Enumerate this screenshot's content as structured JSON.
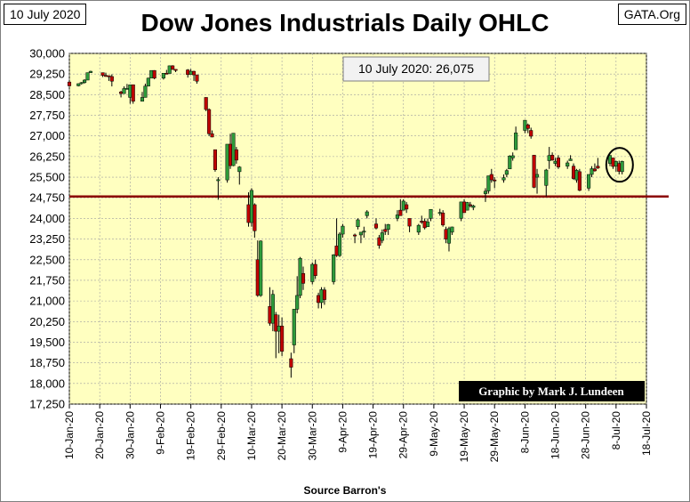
{
  "header": {
    "date": "10 July 2020",
    "title": "Dow Jones Industrials Daily OHLC",
    "source": "GATA.Org"
  },
  "footer": {
    "source": "Source Barron's"
  },
  "colors": {
    "plot_bg": "#ffffc0",
    "up": "#2e9b3a",
    "down": "#c00000",
    "wick": "#000000",
    "ref_line": "#8b0000"
  },
  "chart_data": {
    "type": "candlestick",
    "title": "Dow Jones Industrials Daily OHLC",
    "xlabel": "",
    "ylabel": "",
    "ylim": [
      17250,
      30000
    ],
    "xlim": [
      "2020-01-10",
      "2020-07-18"
    ],
    "y_ticks": [
      "30,000",
      "29,250",
      "28,500",
      "27,750",
      "27,000",
      "26,250",
      "25,500",
      "24,750",
      "24,000",
      "23,250",
      "22,500",
      "21,750",
      "21,000",
      "20,250",
      "19,500",
      "18,750",
      "18,000",
      "17,250"
    ],
    "y_tick_values": [
      30000,
      29250,
      28500,
      27750,
      27000,
      26250,
      25500,
      24750,
      24000,
      23250,
      22500,
      21750,
      21000,
      20250,
      19500,
      18750,
      18000,
      17250
    ],
    "x_tick_labels": [
      "10-Jan-20",
      "20-Jan-20",
      "30-Jan-20",
      "9-Feb-20",
      "19-Feb-20",
      "29-Feb-20",
      "10-Mar-20",
      "20-Mar-20",
      "30-Mar-20",
      "9-Apr-20",
      "19-Apr-20",
      "29-Apr-20",
      "9-May-20",
      "19-May-20",
      "29-May-20",
      "8-Jun-20",
      "18-Jun-20",
      "28-Jun-20",
      "8-Jul-20",
      "18-Jul-20"
    ],
    "x_tick_dates": [
      "2020-01-10",
      "2020-01-20",
      "2020-01-30",
      "2020-02-09",
      "2020-02-19",
      "2020-02-29",
      "2020-03-10",
      "2020-03-20",
      "2020-03-30",
      "2020-04-09",
      "2020-04-19",
      "2020-04-29",
      "2020-05-09",
      "2020-05-19",
      "2020-05-29",
      "2020-06-08",
      "2020-06-18",
      "2020-06-28",
      "2020-07-08",
      "2020-07-18"
    ],
    "grid": true,
    "reference_line": 24800,
    "annotation": "10 July 2020: 26,075",
    "credit": "Graphic by Mark J. Lundeen",
    "highlight": {
      "date": "2020-07-08",
      "value": 25950
    },
    "ohlc": [
      [
        "2020-01-10",
        28960,
        28970,
        28800,
        28820
      ],
      [
        "2020-01-13",
        28820,
        28910,
        28800,
        28900
      ],
      [
        "2020-01-14",
        28900,
        28960,
        28870,
        28940
      ],
      [
        "2020-01-15",
        28940,
        29060,
        28900,
        29030
      ],
      [
        "2020-01-16",
        29030,
        29300,
        29030,
        29300
      ],
      [
        "2020-01-17",
        29300,
        29370,
        29290,
        29350
      ],
      [
        "2020-01-21",
        29300,
        29300,
        29140,
        29200
      ],
      [
        "2020-01-22",
        29200,
        29300,
        29150,
        29190
      ],
      [
        "2020-01-23",
        29190,
        29200,
        29000,
        29160
      ],
      [
        "2020-01-24",
        29160,
        29240,
        28800,
        28990
      ],
      [
        "2020-01-27",
        28600,
        28640,
        28400,
        28540
      ],
      [
        "2020-01-28",
        28540,
        28800,
        28530,
        28720
      ],
      [
        "2020-01-29",
        28720,
        28890,
        28700,
        28730
      ],
      [
        "2020-01-30",
        28400,
        28860,
        28170,
        28860
      ],
      [
        "2020-01-31",
        28860,
        28870,
        28170,
        28260
      ],
      [
        "2020-02-03",
        28260,
        28600,
        28260,
        28400
      ],
      [
        "2020-02-04",
        28400,
        28900,
        28400,
        28810
      ],
      [
        "2020-02-05",
        28810,
        29120,
        28800,
        29100
      ],
      [
        "2020-02-06",
        29100,
        29380,
        29100,
        29380
      ],
      [
        "2020-02-07",
        29380,
        29390,
        29060,
        29100
      ],
      [
        "2020-02-10",
        29100,
        29280,
        29050,
        29280
      ],
      [
        "2020-02-11",
        29280,
        29400,
        29270,
        29270
      ],
      [
        "2020-02-12",
        29270,
        29560,
        29270,
        29550
      ],
      [
        "2020-02-13",
        29550,
        29570,
        29400,
        29420
      ],
      [
        "2020-02-14",
        29420,
        29420,
        29320,
        29400
      ],
      [
        "2020-02-18",
        29400,
        29430,
        29120,
        29230
      ],
      [
        "2020-02-19",
        29230,
        29430,
        29230,
        29350
      ],
      [
        "2020-02-20",
        29350,
        29370,
        29000,
        29220
      ],
      [
        "2020-02-21",
        29220,
        29220,
        28900,
        28990
      ],
      [
        "2020-02-24",
        28400,
        28400,
        27900,
        27960
      ],
      [
        "2020-02-25",
        27960,
        28000,
        27000,
        27080
      ],
      [
        "2020-02-26",
        27080,
        27200,
        26950,
        26960
      ],
      [
        "2020-02-27",
        26500,
        26500,
        25700,
        25770
      ],
      [
        "2020-02-28",
        25400,
        25500,
        24680,
        25410
      ],
      [
        "2020-03-02",
        25400,
        26700,
        25300,
        26700
      ],
      [
        "2020-03-03",
        26700,
        27080,
        25800,
        25920
      ],
      [
        "2020-03-04",
        25920,
        27100,
        25900,
        27100
      ],
      [
        "2020-03-05",
        26500,
        26600,
        25990,
        26120
      ],
      [
        "2020-03-06",
        25700,
        25900,
        25230,
        25870
      ],
      [
        "2020-03-09",
        24500,
        24950,
        23700,
        23850
      ],
      [
        "2020-03-10",
        23850,
        25100,
        23700,
        25020
      ],
      [
        "2020-03-11",
        24500,
        24550,
        23300,
        23550
      ],
      [
        "2020-03-12",
        22500,
        23200,
        21150,
        21200
      ],
      [
        "2020-03-13",
        21200,
        23200,
        21150,
        23180
      ],
      [
        "2020-03-16",
        20800,
        21500,
        20100,
        20190
      ],
      [
        "2020-03-17",
        20190,
        21400,
        19900,
        21240
      ],
      [
        "2020-03-18",
        20500,
        20600,
        18920,
        19900
      ],
      [
        "2020-03-19",
        19900,
        20500,
        19100,
        20090
      ],
      [
        "2020-03-20",
        20090,
        20400,
        19000,
        19170
      ],
      [
        "2020-03-23",
        18900,
        19120,
        18210,
        18590
      ],
      [
        "2020-03-24",
        19400,
        20700,
        19100,
        20700
      ],
      [
        "2020-03-25",
        20700,
        21900,
        20550,
        21200
      ],
      [
        "2020-03-26",
        21200,
        22600,
        21100,
        22550
      ],
      [
        "2020-03-27",
        22000,
        22250,
        21400,
        21640
      ],
      [
        "2020-03-30",
        21700,
        22400,
        21600,
        22330
      ],
      [
        "2020-03-31",
        22330,
        22500,
        21800,
        21920
      ],
      [
        "2020-04-01",
        21200,
        21300,
        20730,
        20940
      ],
      [
        "2020-04-02",
        20940,
        21500,
        20730,
        21410
      ],
      [
        "2020-04-03",
        21400,
        21500,
        20860,
        21050
      ],
      [
        "2020-04-06",
        21700,
        22700,
        21600,
        22680
      ],
      [
        "2020-04-07",
        23000,
        24000,
        22600,
        22650
      ],
      [
        "2020-04-08",
        22650,
        23500,
        22600,
        23430
      ],
      [
        "2020-04-09",
        23430,
        23800,
        23300,
        23720
      ],
      [
        "2020-04-13",
        23400,
        23450,
        23100,
        23390
      ],
      [
        "2020-04-14",
        23700,
        24000,
        23600,
        23950
      ],
      [
        "2020-04-15",
        23400,
        23500,
        23100,
        23500
      ],
      [
        "2020-04-16",
        23500,
        23700,
        23300,
        23540
      ],
      [
        "2020-04-17",
        24100,
        24300,
        24000,
        24240
      ],
      [
        "2020-04-20",
        23800,
        24000,
        23600,
        23650
      ],
      [
        "2020-04-21",
        23300,
        23400,
        22900,
        23020
      ],
      [
        "2020-04-22",
        23200,
        23600,
        23100,
        23480
      ],
      [
        "2020-04-23",
        23600,
        23800,
        23400,
        23520
      ],
      [
        "2020-04-24",
        23600,
        23800,
        23400,
        23780
      ],
      [
        "2020-04-27",
        24000,
        24300,
        23900,
        24130
      ],
      [
        "2020-04-28",
        24300,
        24700,
        24100,
        24100
      ],
      [
        "2020-04-29",
        24300,
        24700,
        24300,
        24630
      ],
      [
        "2020-04-30",
        24500,
        24600,
        24200,
        24340
      ],
      [
        "2020-05-01",
        24000,
        24000,
        23500,
        23720
      ],
      [
        "2020-05-04",
        23500,
        23800,
        23400,
        23750
      ],
      [
        "2020-05-05",
        23900,
        24100,
        23800,
        23880
      ],
      [
        "2020-05-06",
        23900,
        24000,
        23600,
        23660
      ],
      [
        "2020-05-07",
        23700,
        24000,
        23700,
        23870
      ],
      [
        "2020-05-08",
        24000,
        24300,
        23900,
        24330
      ],
      [
        "2020-05-11",
        24200,
        24350,
        24100,
        24220
      ],
      [
        "2020-05-12",
        24200,
        24300,
        23700,
        23760
      ],
      [
        "2020-05-13",
        23600,
        23700,
        23100,
        23250
      ],
      [
        "2020-05-14",
        23100,
        23700,
        22800,
        23630
      ],
      [
        "2020-05-15",
        23500,
        23700,
        23400,
        23690
      ],
      [
        "2020-05-18",
        24000,
        24600,
        23900,
        24600
      ],
      [
        "2020-05-19",
        24600,
        24700,
        24200,
        24210
      ],
      [
        "2020-05-20",
        24300,
        24600,
        24300,
        24580
      ],
      [
        "2020-05-21",
        24500,
        24600,
        24400,
        24470
      ],
      [
        "2020-05-22",
        24400,
        24500,
        24300,
        24460
      ],
      [
        "2020-05-26",
        24900,
        25100,
        24600,
        24990
      ],
      [
        "2020-05-27",
        25000,
        25550,
        24900,
        25550
      ],
      [
        "2020-05-28",
        25600,
        25800,
        25300,
        25400
      ],
      [
        "2020-05-29",
        25400,
        25500,
        25100,
        25380
      ],
      [
        "2020-06-01",
        25400,
        25600,
        25300,
        25480
      ],
      [
        "2020-06-02",
        25600,
        25800,
        25500,
        25740
      ],
      [
        "2020-06-03",
        25800,
        26300,
        25800,
        26270
      ],
      [
        "2020-06-04",
        26200,
        26400,
        26100,
        26280
      ],
      [
        "2020-06-05",
        26500,
        27340,
        26500,
        27110
      ],
      [
        "2020-06-08",
        27200,
        27580,
        27100,
        27570
      ],
      [
        "2020-06-09",
        27400,
        27450,
        27100,
        27270
      ],
      [
        "2020-06-10",
        27200,
        27300,
        26900,
        26990
      ],
      [
        "2020-06-11",
        26300,
        26300,
        25100,
        25130
      ],
      [
        "2020-06-12",
        25500,
        25800,
        24900,
        25600
      ],
      [
        "2020-06-15",
        25200,
        25800,
        24800,
        25760
      ],
      [
        "2020-06-16",
        26100,
        26600,
        25800,
        26290
      ],
      [
        "2020-06-17",
        26300,
        26400,
        26100,
        26120
      ],
      [
        "2020-06-18",
        26000,
        26200,
        25900,
        26080
      ],
      [
        "2020-06-19",
        26200,
        26300,
        25800,
        25870
      ],
      [
        "2020-06-22",
        25900,
        26100,
        25800,
        26020
      ],
      [
        "2020-06-23",
        26100,
        26300,
        26100,
        26160
      ],
      [
        "2020-06-24",
        25900,
        26000,
        25400,
        25450
      ],
      [
        "2020-06-25",
        25400,
        25800,
        25300,
        25750
      ],
      [
        "2020-06-26",
        25700,
        25800,
        24990,
        25020
      ],
      [
        "2020-06-29",
        25100,
        25600,
        25000,
        25600
      ],
      [
        "2020-06-30",
        25600,
        25900,
        25500,
        25810
      ],
      [
        "2020-07-01",
        25800,
        26000,
        25700,
        25730
      ],
      [
        "2020-07-02",
        25900,
        26200,
        25800,
        25830
      ],
      [
        "2020-07-06",
        26000,
        26300,
        25900,
        26290
      ],
      [
        "2020-07-07",
        26200,
        26200,
        25800,
        25890
      ],
      [
        "2020-07-08",
        25900,
        26100,
        25700,
        26070
      ],
      [
        "2020-07-09",
        26000,
        26100,
        25600,
        25710
      ],
      [
        "2020-07-10",
        25700,
        26100,
        25600,
        26075
      ]
    ]
  }
}
